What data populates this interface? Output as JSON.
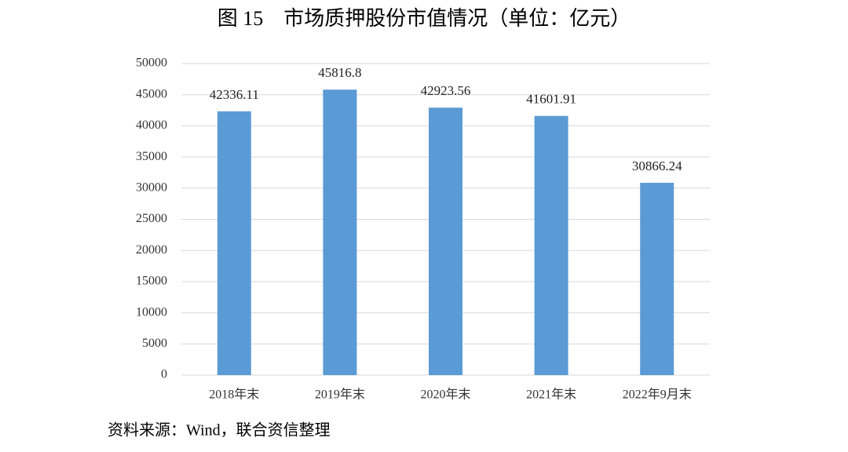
{
  "chart_data": {
    "type": "bar",
    "title": "图 15　市场质押股份市值情况（单位：亿元）",
    "source": "资料来源：Wind，联合资信整理",
    "categories": [
      "2018年末",
      "2019年末",
      "2020年末",
      "2021年末",
      "2022年9月末"
    ],
    "values": [
      42336.11,
      45816.8,
      42923.56,
      41601.91,
      30866.24
    ],
    "color": "#5b9bd5",
    "ylim": [
      0,
      50000
    ],
    "yticks": [
      0,
      5000,
      10000,
      15000,
      20000,
      25000,
      30000,
      35000,
      40000,
      45000,
      50000
    ],
    "grid": true
  }
}
